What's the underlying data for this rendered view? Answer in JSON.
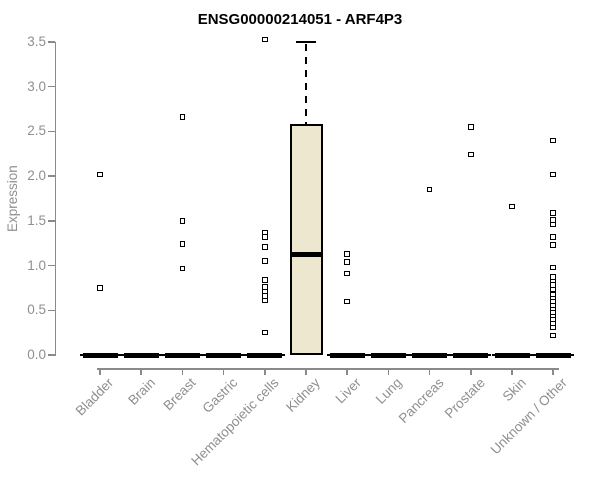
{
  "chart_data": {
    "type": "boxplot",
    "title": "ENSG00000214051 - ARF4P3",
    "ylabel": "Expression",
    "xlabel": "",
    "ylim": [
      0,
      3.5
    ],
    "ytick_labels": [
      "0.0",
      "0.5",
      "1.0",
      "1.5",
      "2.0",
      "2.5",
      "3.0",
      "3.5"
    ],
    "grid": false,
    "legend": "none",
    "categories": [
      "Bladder",
      "Brain",
      "Breast",
      "Gastric",
      "Hematopoietic cells",
      "Kidney",
      "Liver",
      "Lung",
      "Pancreas",
      "Prostate",
      "Skin",
      "Unknown / Other"
    ],
    "series": [
      {
        "category": "Bladder",
        "q1": 0,
        "median": 0,
        "q3": 0,
        "whisker_low": 0,
        "whisker_high": 0,
        "outliers": [
          2.02,
          0.75
        ]
      },
      {
        "category": "Brain",
        "q1": 0,
        "median": 0,
        "q3": 0,
        "whisker_low": 0,
        "whisker_high": 0,
        "outliers": []
      },
      {
        "category": "Breast",
        "q1": 0,
        "median": 0,
        "q3": 0,
        "whisker_low": 0,
        "whisker_high": 0,
        "outliers": [
          2.66,
          1.5,
          1.24,
          0.97
        ]
      },
      {
        "category": "Gastric",
        "q1": 0,
        "median": 0,
        "q3": 0,
        "whisker_low": 0,
        "whisker_high": 0,
        "outliers": []
      },
      {
        "category": "Hematopoietic cells",
        "q1": 0,
        "median": 0,
        "q3": 0,
        "whisker_low": 0,
        "whisker_high": 0,
        "outliers": [
          3.53,
          1.37,
          1.32,
          1.21,
          1.05,
          0.84,
          0.76,
          0.71,
          0.66,
          0.61,
          0.25
        ]
      },
      {
        "category": "Kidney",
        "q1": 0,
        "median": 1.12,
        "q3": 2.58,
        "whisker_low": 0,
        "whisker_high": 3.5,
        "outliers": []
      },
      {
        "category": "Liver",
        "q1": 0,
        "median": 0,
        "q3": 0,
        "whisker_low": 0,
        "whisker_high": 0,
        "outliers": [
          1.13,
          1.04,
          0.91,
          0.6
        ]
      },
      {
        "category": "Lung",
        "q1": 0,
        "median": 0,
        "q3": 0,
        "whisker_low": 0,
        "whisker_high": 0,
        "outliers": []
      },
      {
        "category": "Pancreas",
        "q1": 0,
        "median": 0,
        "q3": 0,
        "whisker_low": 0,
        "whisker_high": 0,
        "outliers": [
          1.85
        ]
      },
      {
        "category": "Prostate",
        "q1": 0,
        "median": 0,
        "q3": 0,
        "whisker_low": 0,
        "whisker_high": 0,
        "outliers": [
          2.55,
          2.24
        ]
      },
      {
        "category": "Skin",
        "q1": 0,
        "median": 0,
        "q3": 0,
        "whisker_low": 0,
        "whisker_high": 0,
        "outliers": [
          1.66
        ]
      },
      {
        "category": "Unknown / Other",
        "q1": 0,
        "median": 0,
        "q3": 0,
        "whisker_low": 0,
        "whisker_high": 0,
        "outliers": [
          2.4,
          2.02,
          1.59,
          1.51,
          1.46,
          1.32,
          1.23,
          0.98,
          0.87,
          0.82,
          0.78,
          0.73,
          0.67,
          0.63,
          0.59,
          0.55,
          0.51,
          0.47,
          0.43,
          0.39,
          0.35,
          0.31,
          0.22
        ]
      }
    ],
    "colors": {
      "box_fill": "#ece7ce",
      "box_border": "#000000",
      "median": "#000000",
      "outlier_fill": "#ffffff",
      "outlier_border": "#000000",
      "axis": "#8a8a8a",
      "tick_label": "#8f8f8f",
      "title": "#000000"
    }
  }
}
